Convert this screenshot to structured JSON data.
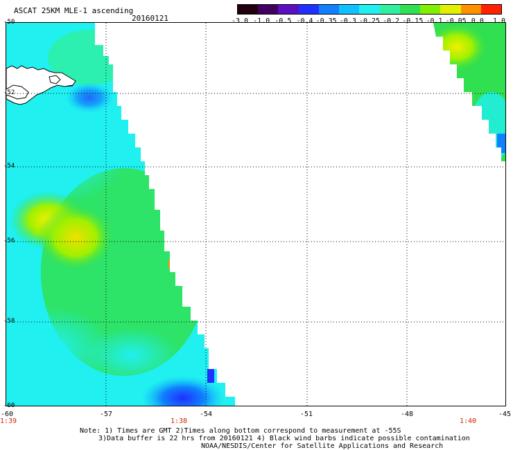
{
  "header": {
    "title": "ASCAT 25KM MLE-1 ascending",
    "date": "20160121"
  },
  "colorbar": {
    "ticks": [
      "-3.0",
      "-1.0",
      "-0.5",
      "-0.4",
      "-0.35",
      "-0.3",
      "-0.25",
      "-0.2",
      "-0.15",
      "-0.1",
      "-0.05",
      "0.0",
      "1.0"
    ],
    "colors": [
      "#200010",
      "#400060",
      "#5a10c0",
      "#2030ff",
      "#1080ff",
      "#10c0ff",
      "#20f0f0",
      "#30f0a0",
      "#30e050",
      "#80f000",
      "#e0f000",
      "#ff9000",
      "#ff2000"
    ]
  },
  "map": {
    "lat_labels": [
      "-50",
      "-52",
      "-54",
      "-56",
      "-58",
      "-60"
    ],
    "lon_labels": [
      "-60",
      "-57",
      "-54",
      "-51",
      "-48",
      "-45"
    ],
    "time_labels": [
      "1:39",
      "1:38",
      "1:40"
    ],
    "colors": {
      "cyan": "#20f0f0",
      "aqua_green": "#30f0a0",
      "green": "#30e050",
      "yellow_green": "#a0f000",
      "yellow": "#e0f000",
      "light_blue": "#10c0ff",
      "blue": "#1080ff",
      "dark_blue": "#2030ff",
      "orange": "#ff9000"
    }
  },
  "notes": {
    "line1": "Note: 1) Times are GMT 2)Times along bottom correspond to measurement at -55S",
    "line2": "3)Data buffer is 22 hrs from 20160121 4) Black wind barbs indicate possible contamination",
    "line3": "NOAA/NESDIS/Center for Satellite Applications and Research"
  }
}
